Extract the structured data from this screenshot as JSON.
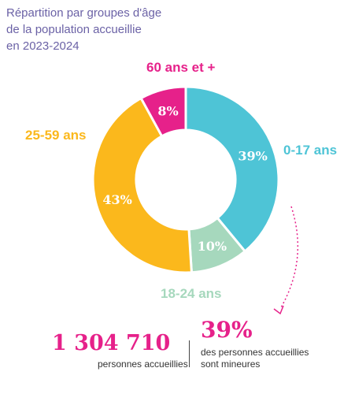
{
  "title_lines": [
    "Répartition par groupes d'âge",
    "de la population accueillie",
    "en 2023-2024"
  ],
  "chart_data": {
    "type": "pie",
    "donut": true,
    "start": "top, clockwise",
    "slices": [
      {
        "label": "0-17 ans",
        "value": 39,
        "value_label": "39%",
        "color": "#4ec4d6"
      },
      {
        "label": "18-24 ans",
        "value": 10,
        "value_label": "10%",
        "color": "#a6d8bd"
      },
      {
        "label": "25-59 ans",
        "value": 43,
        "value_label": "43%",
        "color": "#fbb81c"
      },
      {
        "label": "60 ans et +",
        "value": 8,
        "value_label": "8%",
        "color": "#e6218a"
      }
    ]
  },
  "footer": {
    "count_value": "1 304 710",
    "count_label": "personnes accueillies",
    "minors_value": "39%",
    "minors_label_line1": "des personnes accueillies",
    "minors_label_line2": "sont mineures"
  },
  "colors": {
    "title": "#6b62a6",
    "accent": "#e6218a",
    "arrow": "#e6218a"
  }
}
